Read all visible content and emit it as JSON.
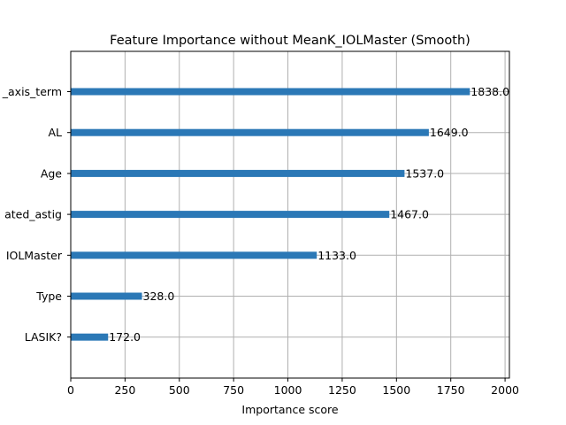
{
  "chart_data": {
    "type": "bar",
    "orientation": "horizontal",
    "title": "Feature Importance without MeanK_IOLMaster (Smooth)",
    "xlabel": "Importance score",
    "ylabel": "",
    "xlim": [
      0,
      2020
    ],
    "xticks": [
      0,
      250,
      500,
      750,
      1000,
      1250,
      1500,
      1750,
      2000
    ],
    "xtick_labels": [
      "0",
      "250",
      "500",
      "750",
      "1000",
      "1250",
      "1500",
      "1750",
      "2000"
    ],
    "grid": true,
    "bar_color": "#2b78b6",
    "categories": [
      "_axis_term",
      "AL",
      "Age",
      "ated_astig",
      "IOLMaster",
      "Type",
      "LASIK?"
    ],
    "values": [
      1838.0,
      1649.0,
      1537.0,
      1467.0,
      1133.0,
      328.0,
      172.0
    ],
    "data_labels": [
      "1838.0",
      "1649.0",
      "1537.0",
      "1467.0",
      "1133.0",
      "328.0",
      "172.0"
    ]
  }
}
